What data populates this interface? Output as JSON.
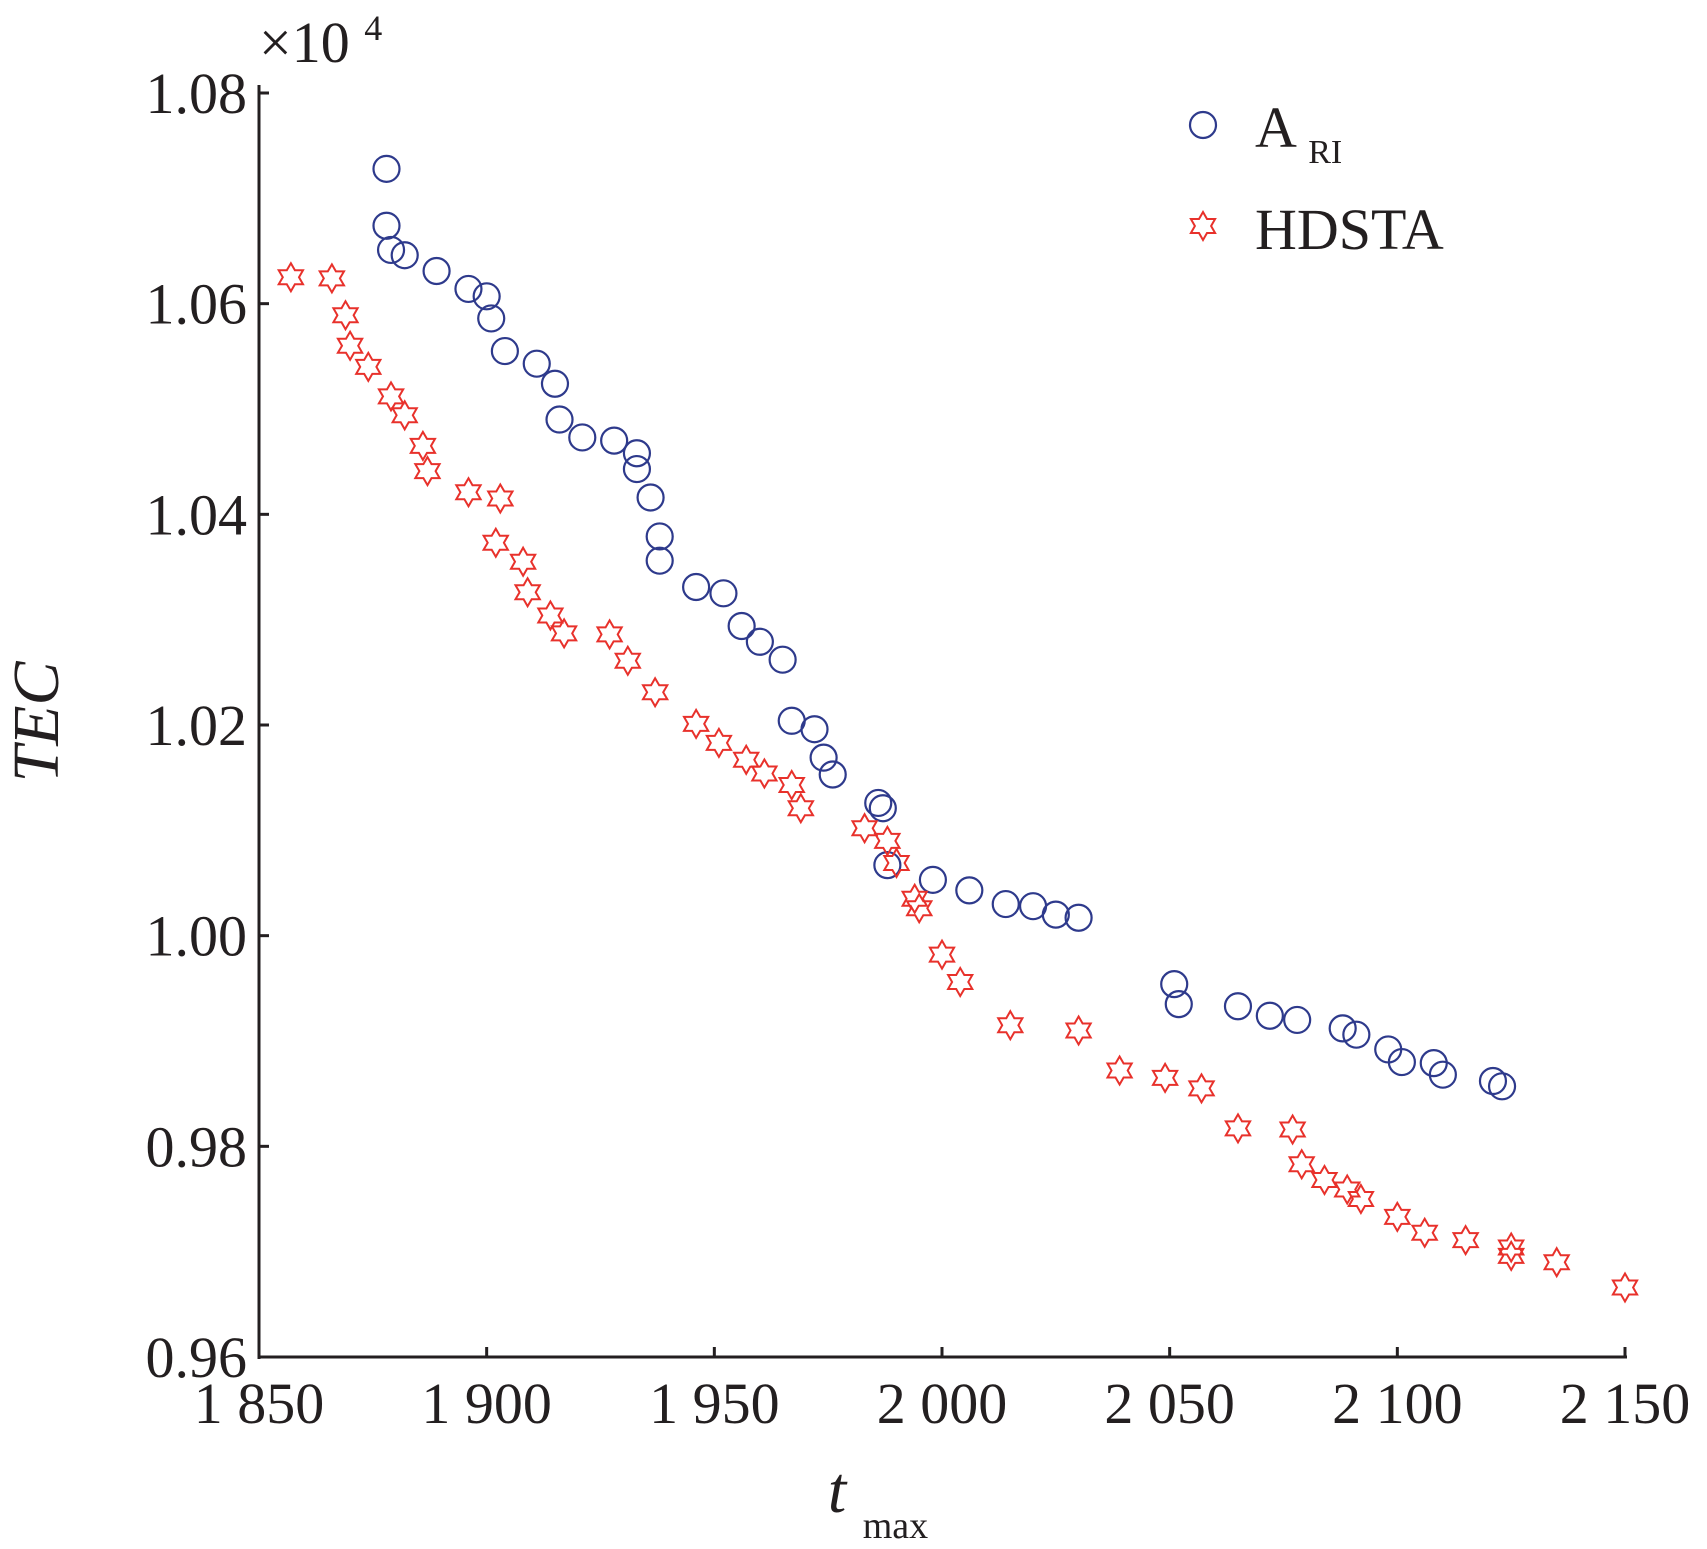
{
  "chart_data": {
    "type": "scatter",
    "xlabel": "t",
    "xlabel_sub": "max",
    "ylabel": "TEC",
    "y_multiplier": "×10",
    "y_multiplier_exp": "4",
    "xlim": [
      1850,
      2150
    ],
    "ylim": [
      0.96,
      1.08
    ],
    "x_ticks": [
      1850,
      1900,
      1950,
      2000,
      2050,
      2100,
      2150
    ],
    "x_tick_labels": [
      "1 850",
      "1 900",
      "1 950",
      "2 000",
      "2 050",
      "2 100",
      "2 150"
    ],
    "y_ticks": [
      0.96,
      0.98,
      1.0,
      1.02,
      1.04,
      1.06,
      1.08
    ],
    "y_tick_labels": [
      "0.96",
      "0.98",
      "1.00",
      "1.02",
      "1.04",
      "1.06",
      "1.08"
    ],
    "grid": false,
    "legend_position": "top-right",
    "series": [
      {
        "name": "A",
        "name_sub": "RI",
        "marker": "circle",
        "color": "#2e3a8c",
        "points": [
          [
            1878,
            1.0728
          ],
          [
            1878,
            1.0674
          ],
          [
            1879,
            1.0651
          ],
          [
            1882,
            1.0646
          ],
          [
            1889,
            1.0631
          ],
          [
            1896,
            1.0614
          ],
          [
            1900,
            1.0607
          ],
          [
            1901,
            1.0586
          ],
          [
            1904,
            1.0555
          ],
          [
            1911,
            1.0543
          ],
          [
            1915,
            1.0524
          ],
          [
            1916,
            1.049
          ],
          [
            1921,
            1.0473
          ],
          [
            1928,
            1.047
          ],
          [
            1933,
            1.0458
          ],
          [
            1933,
            1.0443
          ],
          [
            1936,
            1.0416
          ],
          [
            1938,
            1.0379
          ],
          [
            1938,
            1.0356
          ],
          [
            1946,
            1.0331
          ],
          [
            1952,
            1.0325
          ],
          [
            1956,
            1.0294
          ],
          [
            1960,
            1.0279
          ],
          [
            1965,
            1.0262
          ],
          [
            1967,
            1.0204
          ],
          [
            1972,
            1.0196
          ],
          [
            1974,
            1.0169
          ],
          [
            1976,
            1.0153
          ],
          [
            1986,
            1.0126
          ],
          [
            1987,
            1.0121
          ],
          [
            1988,
            1.0067
          ],
          [
            1998,
            1.0053
          ],
          [
            2006,
            1.0043
          ],
          [
            2014,
            1.003
          ],
          [
            2020,
            1.0028
          ],
          [
            2025,
            1.002
          ],
          [
            2030,
            1.0017
          ],
          [
            2051,
            0.9954
          ],
          [
            2052,
            0.9935
          ],
          [
            2065,
            0.9933
          ],
          [
            2072,
            0.9924
          ],
          [
            2078,
            0.992
          ],
          [
            2088,
            0.9912
          ],
          [
            2091,
            0.9906
          ],
          [
            2098,
            0.9892
          ],
          [
            2101,
            0.988
          ],
          [
            2108,
            0.9879
          ],
          [
            2110,
            0.9868
          ],
          [
            2121,
            0.9862
          ],
          [
            2123,
            0.9857
          ]
        ]
      },
      {
        "name": "HDSTA",
        "name_sub": "",
        "marker": "hexagram",
        "color": "#e8312b",
        "points": [
          [
            1857,
            1.0625
          ],
          [
            1866,
            1.0624
          ],
          [
            1869,
            1.0589
          ],
          [
            1870,
            1.056
          ],
          [
            1874,
            1.054
          ],
          [
            1879,
            1.0512
          ],
          [
            1882,
            1.0494
          ],
          [
            1886,
            1.0465
          ],
          [
            1887,
            1.0441
          ],
          [
            1896,
            1.0421
          ],
          [
            1903,
            1.0415
          ],
          [
            1902,
            1.0373
          ],
          [
            1908,
            1.0355
          ],
          [
            1909,
            1.0326
          ],
          [
            1914,
            1.0304
          ],
          [
            1917,
            1.0287
          ],
          [
            1927,
            1.0286
          ],
          [
            1931,
            1.0261
          ],
          [
            1937,
            1.0231
          ],
          [
            1946,
            1.0201
          ],
          [
            1951,
            1.0183
          ],
          [
            1957,
            1.0167
          ],
          [
            1961,
            1.0154
          ],
          [
            1967,
            1.0143
          ],
          [
            1969,
            1.0121
          ],
          [
            1983,
            1.0102
          ],
          [
            1988,
            1.009
          ],
          [
            1990,
            1.0069
          ],
          [
            1994,
            1.0035
          ],
          [
            1995,
            1.0026
          ],
          [
            2000,
            0.9982
          ],
          [
            2004,
            0.9956
          ],
          [
            2015,
            0.9915
          ],
          [
            2030,
            0.991
          ],
          [
            2039,
            0.9872
          ],
          [
            2049,
            0.9865
          ],
          [
            2057,
            0.9855
          ],
          [
            2065,
            0.9817
          ],
          [
            2077,
            0.9816
          ],
          [
            2079,
            0.9783
          ],
          [
            2084,
            0.9768
          ],
          [
            2089,
            0.9759
          ],
          [
            2092,
            0.975
          ],
          [
            2100,
            0.9733
          ],
          [
            2106,
            0.9718
          ],
          [
            2115,
            0.9711
          ],
          [
            2125,
            0.9704
          ],
          [
            2125,
            0.9696
          ],
          [
            2135,
            0.969
          ],
          [
            2150,
            0.9666
          ]
        ]
      }
    ]
  }
}
